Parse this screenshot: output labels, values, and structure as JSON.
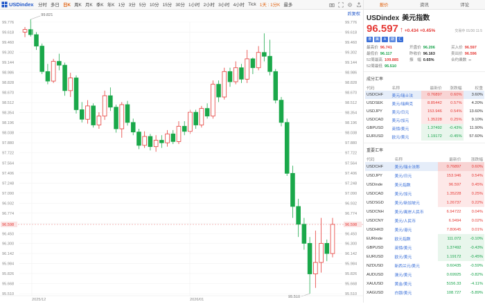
{
  "toolbar": {
    "symbol": "USDindex",
    "periods": [
      "分时",
      "多日",
      "日K",
      "周K",
      "月K",
      "季K",
      "年K",
      "1分",
      "3分",
      "5分",
      "10分",
      "15分",
      "30分",
      "1小时",
      "2小时",
      "3小时",
      "4小时",
      "Tick",
      "1天 : 1分K",
      "最多"
    ],
    "active_period": "日K",
    "selected_period": "1天 : 1分K",
    "restore_label": "后复权"
  },
  "chart": {
    "price_labels": [
      "99.776",
      "99.618",
      "99.460",
      "99.302",
      "99.144",
      "98.986",
      "98.828",
      "98.670",
      "98.512",
      "98.354",
      "98.196",
      "98.038",
      "97.880",
      "97.722",
      "97.564",
      "97.406",
      "97.248",
      "97.090",
      "96.932",
      "96.774",
      "96.616",
      "96.450",
      "96.300",
      "96.142",
      "95.984",
      "95.826",
      "95.668",
      "95.510"
    ],
    "current_price_tag": "96.598",
    "high_marker": "99.821",
    "low_marker": "95.510",
    "date_labels": [
      "2025/12",
      "2026/01"
    ],
    "up_color": "#e53935",
    "down_color": "#1aa84a",
    "candles": [
      [
        99.62,
        99.66,
        99.54,
        99.7
      ],
      [
        99.66,
        99.58,
        99.55,
        99.82
      ],
      [
        99.58,
        99.4,
        99.34,
        99.62
      ],
      [
        99.4,
        99.0,
        98.96,
        99.44
      ],
      [
        99.0,
        98.85,
        98.8,
        99.12
      ],
      [
        98.85,
        99.16,
        98.82,
        99.2
      ],
      [
        99.16,
        99.1,
        99.02,
        99.28
      ],
      [
        99.1,
        98.7,
        98.62,
        99.14
      ],
      [
        98.7,
        98.9,
        98.6,
        98.98
      ],
      [
        98.9,
        98.4,
        98.34,
        98.94
      ],
      [
        98.4,
        98.25,
        98.2,
        98.52
      ],
      [
        98.25,
        98.46,
        98.18,
        98.55
      ],
      [
        98.46,
        98.16,
        98.12,
        98.5
      ],
      [
        98.16,
        98.3,
        98.1,
        98.36
      ],
      [
        98.3,
        98.62,
        98.24,
        98.7
      ],
      [
        98.62,
        98.44,
        98.38,
        98.75
      ],
      [
        98.44,
        98.1,
        98.04,
        98.48
      ],
      [
        98.1,
        98.48,
        97.96,
        98.52
      ],
      [
        98.48,
        98.2,
        98.15,
        98.54
      ],
      [
        98.2,
        98.05,
        98.0,
        98.26
      ],
      [
        98.05,
        97.84,
        97.78,
        98.1
      ],
      [
        97.84,
        97.98,
        97.8,
        98.06
      ],
      [
        97.98,
        97.82,
        97.76,
        98.02
      ],
      [
        97.82,
        97.92,
        97.74,
        98.0
      ],
      [
        97.92,
        97.88,
        97.8,
        98.0
      ],
      [
        97.88,
        98.02,
        97.82,
        98.08
      ],
      [
        98.02,
        97.9,
        97.86,
        98.08
      ],
      [
        97.9,
        98.14,
        97.86,
        98.22
      ],
      [
        98.14,
        98.06,
        98.0,
        98.22
      ],
      [
        98.06,
        98.36,
        98.02,
        98.4
      ],
      [
        98.36,
        98.16,
        98.1,
        98.4
      ],
      [
        98.16,
        98.42,
        98.12,
        98.46
      ],
      [
        98.42,
        98.3,
        98.26,
        98.5
      ],
      [
        98.3,
        98.8,
        98.26,
        98.86
      ],
      [
        98.8,
        98.6,
        98.52,
        98.86
      ],
      [
        98.6,
        99.0,
        98.56,
        99.06
      ],
      [
        99.0,
        98.84,
        98.76,
        99.06
      ],
      [
        98.84,
        99.06,
        98.8,
        99.16
      ],
      [
        99.06,
        98.88,
        98.82,
        99.12
      ],
      [
        98.88,
        99.2,
        98.82,
        99.34
      ],
      [
        99.2,
        99.06,
        98.96,
        99.22
      ],
      [
        99.06,
        99.3,
        99.02,
        99.4
      ],
      [
        99.3,
        99.24,
        99.16,
        99.6
      ],
      [
        99.24,
        99.0,
        98.94,
        99.5
      ],
      [
        99.0,
        98.55,
        98.5,
        99.04
      ],
      [
        98.55,
        98.2,
        98.14,
        98.6
      ],
      [
        98.2,
        97.4,
        97.36,
        98.26
      ],
      [
        97.4,
        96.88,
        96.7,
        97.52
      ],
      [
        96.88,
        96.6,
        96.4,
        97.0
      ],
      [
        96.6,
        96.3,
        96.2,
        96.7
      ],
      [
        96.3,
        95.82,
        95.51,
        96.4
      ],
      [
        95.82,
        96.0,
        95.6,
        96.5
      ],
      [
        96.0,
        96.3,
        95.84,
        96.7
      ],
      [
        96.3,
        96.14,
        96.02,
        96.36
      ],
      [
        96.14,
        96.598,
        96.08,
        96.7
      ]
    ]
  },
  "panel": {
    "tabs": [
      "报价",
      "资讯",
      "评论"
    ],
    "active_tab": "报价",
    "code": "USDindex",
    "name": "美元指数",
    "price": "96.597",
    "change": "+0.434",
    "change_pct": "+0.45%",
    "time": "交易中 01/30 11:5",
    "badges": [
      "港",
      "美",
      "A",
      "期",
      "汇"
    ],
    "stats": [
      {
        "label": "最高价",
        "value": "96.741",
        "cls": "red"
      },
      {
        "label": "开盘价",
        "value": "96.206",
        "cls": "green"
      },
      {
        "label": "买入价",
        "value": "96.597",
        "cls": "red"
      },
      {
        "label": "最低价",
        "value": "96.117",
        "cls": "green"
      },
      {
        "label": "昨收价",
        "value": "96.163",
        "cls": "dark"
      },
      {
        "label": "卖出价",
        "value": "96.596",
        "cls": "red"
      },
      {
        "label": "52周最高",
        "value": "109.885",
        "cls": "red"
      },
      {
        "label": "振　幅",
        "value": "0.65%",
        "cls": "dark"
      },
      {
        "label": "合约乘数",
        "value": "--",
        "cls": "dark"
      },
      {
        "label": "52周最低",
        "value": "95.510",
        "cls": "green"
      }
    ],
    "components_title": "成分汇率",
    "components_headers": [
      "代码",
      "名称",
      "最新价",
      "涨跌幅",
      "权重"
    ],
    "components": [
      {
        "code": "USDCHF",
        "name": "美元/瑞士法",
        "price": "0.76897",
        "pct": "0.60%",
        "weight": "3.60%",
        "dir": "up",
        "hl": true
      },
      {
        "code": "USDSEK",
        "name": "美元/瑞典克",
        "price": "8.85442",
        "pct": "0.57%",
        "weight": "4.20%",
        "dir": "up",
        "hl": false
      },
      {
        "code": "USDJPY",
        "name": "美元/日元",
        "price": "153.946",
        "pct": "0.54%",
        "weight": "13.60%",
        "dir": "up",
        "hl": false
      },
      {
        "code": "USDCAD",
        "name": "美元/加元",
        "price": "1.35228",
        "pct": "0.25%",
        "weight": "9.10%",
        "dir": "up",
        "hl": false
      },
      {
        "code": "GBPUSD",
        "name": "英镑/美元",
        "price": "1.37492",
        "pct": "-0.43%",
        "weight": "11.90%",
        "dir": "down",
        "hl": false
      },
      {
        "code": "EURUSD",
        "name": "欧元/美元",
        "price": "1.19172",
        "pct": "-0.45%",
        "weight": "57.60%",
        "dir": "down",
        "hl": false
      }
    ],
    "major_title": "重要汇率",
    "major_headers": [
      "代码",
      "名称",
      "最新价",
      "涨跌幅"
    ],
    "major": [
      {
        "code": "USDCHF",
        "name": "美元/瑞士法郎",
        "price": "0.76897",
        "pct": "0.60%",
        "dir": "up",
        "box": true,
        "hl": true
      },
      {
        "code": "USDJPY",
        "name": "美元/日元",
        "price": "153.946",
        "pct": "0.54%",
        "dir": "up",
        "box": true,
        "hl": false
      },
      {
        "code": "USDinde",
        "name": "美元指数",
        "price": "96.597",
        "pct": "0.45%",
        "dir": "up",
        "box": true,
        "hl": false
      },
      {
        "code": "USDCAD",
        "name": "美元/加元",
        "price": "1.35228",
        "pct": "0.25%",
        "dir": "up",
        "box": true,
        "hl": false
      },
      {
        "code": "USDSGD",
        "name": "美元/新加坡元",
        "price": "1.26737",
        "pct": "0.22%",
        "dir": "up",
        "box": true,
        "hl": false
      },
      {
        "code": "USDCNH",
        "name": "美元/离岸人民币",
        "price": "6.94722",
        "pct": "0.04%",
        "dir": "up",
        "box": false,
        "hl": false
      },
      {
        "code": "USDCNY",
        "name": "美元/人民币",
        "price": "6.9494",
        "pct": "0.02%",
        "dir": "up",
        "box": false,
        "hl": false
      },
      {
        "code": "USDHKD",
        "name": "美元/港元",
        "price": "7.80645",
        "pct": "0.01%",
        "dir": "up",
        "box": false,
        "hl": false
      },
      {
        "code": "EURinde",
        "name": "欧元指数",
        "price": "111.072",
        "pct": "-0.10%",
        "dir": "down",
        "box": true,
        "hl": false
      },
      {
        "code": "GBPUSD",
        "name": "英镑/美元",
        "price": "1.37492",
        "pct": "-0.43%",
        "dir": "down",
        "box": true,
        "hl": false
      },
      {
        "code": "EURUSD",
        "name": "欧元/美元",
        "price": "1.19172",
        "pct": "-0.45%",
        "dir": "down",
        "box": true,
        "hl": false
      },
      {
        "code": "NZDUSD",
        "name": "新西兰元/美元",
        "price": "0.60435",
        "pct": "-0.59%",
        "dir": "down",
        "box": false,
        "hl": false
      },
      {
        "code": "AUDUSD",
        "name": "澳元/美元",
        "price": "0.69925",
        "pct": "-0.82%",
        "dir": "down",
        "box": false,
        "hl": false
      },
      {
        "code": "XAUUSD",
        "name": "黄金/美元",
        "price": "5156.33",
        "pct": "-4.11%",
        "dir": "down",
        "box": false,
        "hl": false
      },
      {
        "code": "XAGUSD",
        "name": "白银/美元",
        "price": "108.727",
        "pct": "-5.89%",
        "dir": "down",
        "box": false,
        "hl": false
      }
    ]
  }
}
